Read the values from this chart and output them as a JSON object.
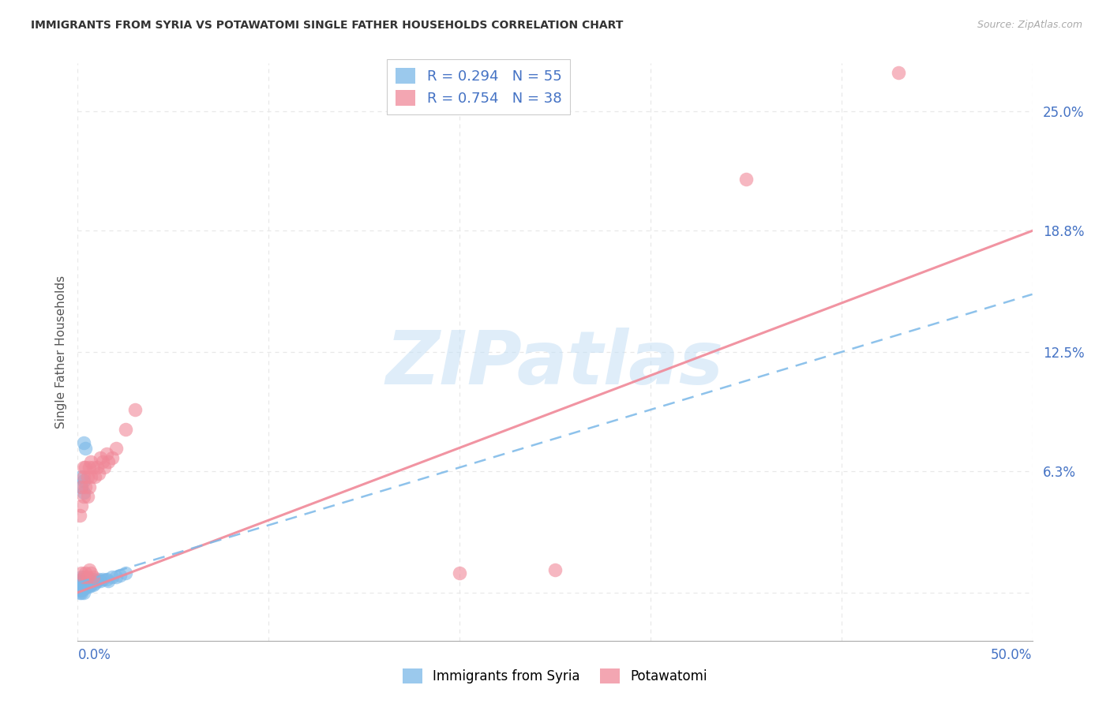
{
  "title": "IMMIGRANTS FROM SYRIA VS POTAWATOMI SINGLE FATHER HOUSEHOLDS CORRELATION CHART",
  "source": "Source: ZipAtlas.com",
  "ylabel": "Single Father Households",
  "y_ticks": [
    0.0,
    0.063,
    0.125,
    0.188,
    0.25
  ],
  "y_tick_labels": [
    "",
    "6.3%",
    "12.5%",
    "18.8%",
    "25.0%"
  ],
  "xlim": [
    0.0,
    0.5
  ],
  "ylim": [
    -0.025,
    0.275
  ],
  "legend_label_syria": "Immigrants from Syria",
  "legend_label_potawatomi": "Potawatomi",
  "legend_r_syria": "R = 0.294",
  "legend_n_syria": "N = 55",
  "legend_r_potawatomi": "R = 0.754",
  "legend_n_potawatomi": "N = 38",
  "syria_color": "#7ab8e8",
  "potawatomi_color": "#f08898",
  "watermark": "ZIPatlas",
  "background_color": "#ffffff",
  "grid_color": "#e8e8e8",
  "title_color": "#333333",
  "axis_color": "#4472c4",
  "pink_trend_x0": 0.0,
  "pink_trend_y0": 0.0,
  "pink_trend_x1": 0.5,
  "pink_trend_y1": 0.188,
  "blue_trend_x0": 0.0,
  "blue_trend_y0": 0.005,
  "blue_trend_x1": 0.5,
  "blue_trend_y1": 0.155,
  "syria_scatter_x": [
    0.001,
    0.001,
    0.001,
    0.001,
    0.001,
    0.002,
    0.002,
    0.002,
    0.002,
    0.002,
    0.002,
    0.002,
    0.003,
    0.003,
    0.003,
    0.003,
    0.003,
    0.003,
    0.004,
    0.004,
    0.004,
    0.004,
    0.005,
    0.005,
    0.005,
    0.005,
    0.006,
    0.006,
    0.006,
    0.007,
    0.007,
    0.008,
    0.008,
    0.009,
    0.01,
    0.011,
    0.012,
    0.013,
    0.015,
    0.016,
    0.018,
    0.02,
    0.022,
    0.025,
    0.003,
    0.004,
    0.002,
    0.003,
    0.002,
    0.003,
    0.001,
    0.001,
    0.002,
    0.002,
    0.003
  ],
  "syria_scatter_y": [
    0.002,
    0.003,
    0.004,
    0.005,
    0.006,
    0.002,
    0.003,
    0.004,
    0.005,
    0.006,
    0.007,
    0.008,
    0.002,
    0.003,
    0.004,
    0.005,
    0.006,
    0.007,
    0.003,
    0.004,
    0.005,
    0.006,
    0.003,
    0.004,
    0.005,
    0.007,
    0.003,
    0.005,
    0.006,
    0.004,
    0.006,
    0.004,
    0.007,
    0.005,
    0.006,
    0.007,
    0.006,
    0.007,
    0.007,
    0.006,
    0.008,
    0.008,
    0.009,
    0.01,
    0.078,
    0.075,
    0.06,
    0.058,
    0.055,
    0.052,
    0.0,
    0.001,
    0.0,
    0.001,
    0.0
  ],
  "potawatomi_scatter_x": [
    0.001,
    0.002,
    0.002,
    0.003,
    0.003,
    0.003,
    0.004,
    0.004,
    0.005,
    0.005,
    0.006,
    0.006,
    0.007,
    0.007,
    0.008,
    0.009,
    0.01,
    0.011,
    0.012,
    0.013,
    0.014,
    0.015,
    0.016,
    0.018,
    0.02,
    0.025,
    0.03,
    0.2,
    0.25,
    0.35,
    0.43,
    0.002,
    0.003,
    0.004,
    0.005,
    0.006,
    0.007,
    0.008
  ],
  "potawatomi_scatter_y": [
    0.04,
    0.045,
    0.055,
    0.05,
    0.06,
    0.065,
    0.055,
    0.065,
    0.05,
    0.06,
    0.055,
    0.065,
    0.06,
    0.068,
    0.065,
    0.06,
    0.065,
    0.062,
    0.07,
    0.068,
    0.065,
    0.072,
    0.068,
    0.07,
    0.075,
    0.085,
    0.095,
    0.01,
    0.012,
    0.215,
    0.27,
    0.01,
    0.008,
    0.01,
    0.008,
    0.012,
    0.01,
    0.008
  ]
}
